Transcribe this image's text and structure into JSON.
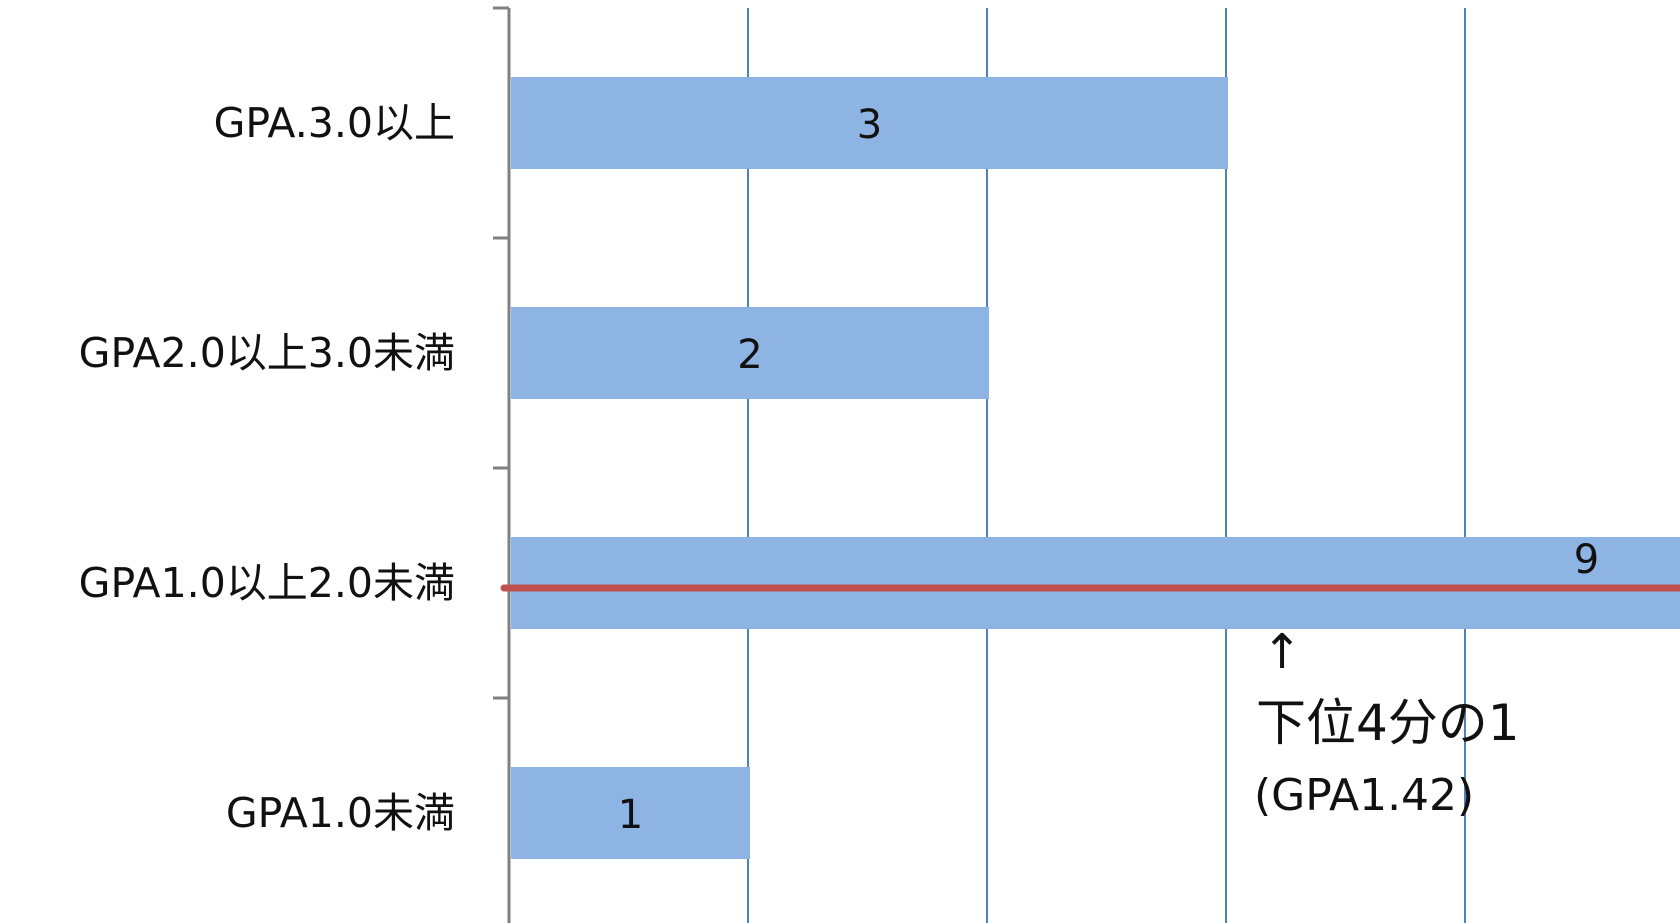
{
  "chart_data": {
    "type": "bar",
    "orientation": "horizontal",
    "categories": [
      "GPA.3.0以上",
      "GPA2.0以上3.0未満",
      "GPA1.0以上2.0未満",
      "GPA1.0未満"
    ],
    "values": [
      3,
      2,
      9,
      1
    ],
    "data_labels": [
      "3",
      "2",
      "9",
      "1"
    ],
    "title": "",
    "xlabel": "",
    "ylabel": "",
    "xlim": [
      0,
      9
    ],
    "grid": true,
    "legend": "none",
    "marker_line": {
      "category": "GPA1.0以上2.0未満"
    },
    "annotation": {
      "arrow": "↑",
      "line1": "下位4分の1",
      "line2": "(GPA1.42)"
    }
  },
  "colors": {
    "bar": "#8EB4E3",
    "grid": "#4F81BD",
    "axis": "#808080",
    "marker_line": "#C0504D",
    "text": "#111111"
  }
}
